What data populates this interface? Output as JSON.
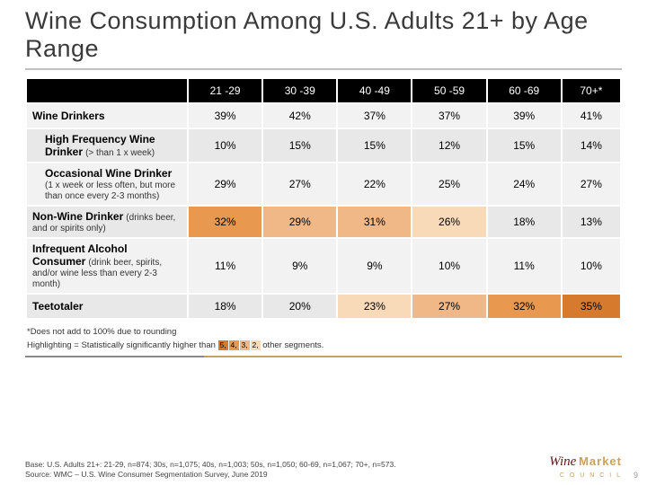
{
  "title": "Wine Consumption Among U.S. Adults 21+ by Age Range",
  "columns": [
    "21 -29",
    "30 -39",
    "40 -49",
    "50 -59",
    "60 -69",
    "70+*"
  ],
  "rows": [
    {
      "label_main": "Wine Drinkers",
      "label_sub": "",
      "indent": false,
      "cells": [
        {
          "v": "39%",
          "hl": 0
        },
        {
          "v": "42%",
          "hl": 0
        },
        {
          "v": "37%",
          "hl": 0
        },
        {
          "v": "37%",
          "hl": 0
        },
        {
          "v": "39%",
          "hl": 0
        },
        {
          "v": "41%",
          "hl": 0
        }
      ]
    },
    {
      "label_main": "High Frequency Wine Drinker",
      "label_sub": "(> than 1 x week)",
      "indent": true,
      "cells": [
        {
          "v": "10%",
          "hl": 0
        },
        {
          "v": "15%",
          "hl": 0
        },
        {
          "v": "15%",
          "hl": 0
        },
        {
          "v": "12%",
          "hl": 0
        },
        {
          "v": "15%",
          "hl": 0
        },
        {
          "v": "14%",
          "hl": 0
        }
      ]
    },
    {
      "label_main": "Occasional Wine Drinker",
      "label_sub": "(1 x week or less often, but more than once every 2-3 months)",
      "indent": true,
      "cells": [
        {
          "v": "29%",
          "hl": 0
        },
        {
          "v": "27%",
          "hl": 0
        },
        {
          "v": "22%",
          "hl": 0
        },
        {
          "v": "25%",
          "hl": 0
        },
        {
          "v": "24%",
          "hl": 0
        },
        {
          "v": "27%",
          "hl": 0
        }
      ]
    },
    {
      "label_main": "Non-Wine Drinker",
      "label_sub": "(drinks beer, and or spirits only)",
      "indent": false,
      "cells": [
        {
          "v": "32%",
          "hl": 4
        },
        {
          "v": "29%",
          "hl": 3
        },
        {
          "v": "31%",
          "hl": 3
        },
        {
          "v": "26%",
          "hl": 2
        },
        {
          "v": "18%",
          "hl": 0
        },
        {
          "v": "13%",
          "hl": 0
        }
      ]
    },
    {
      "label_main": "Infrequent Alcohol Consumer",
      "label_sub": "(drink beer, spirits, and/or wine less than every 2-3 month)",
      "indent": false,
      "cells": [
        {
          "v": "11%",
          "hl": 0
        },
        {
          "v": "9%",
          "hl": 0
        },
        {
          "v": "9%",
          "hl": 0
        },
        {
          "v": "10%",
          "hl": 0
        },
        {
          "v": "11%",
          "hl": 0
        },
        {
          "v": "10%",
          "hl": 0
        }
      ]
    },
    {
      "label_main": "Teetotaler",
      "label_sub": "",
      "indent": false,
      "cells": [
        {
          "v": "18%",
          "hl": 0
        },
        {
          "v": "20%",
          "hl": 0
        },
        {
          "v": "23%",
          "hl": 2
        },
        {
          "v": "27%",
          "hl": 3
        },
        {
          "v": "32%",
          "hl": 4
        },
        {
          "v": "35%",
          "hl": 5
        }
      ]
    }
  ],
  "highlight_colors": {
    "5": "#d67a2e",
    "4": "#e8994f",
    "3": "#f0b886",
    "2": "#f8d9b8"
  },
  "footnote_rounding": "*Does not add to 100% due to rounding",
  "footnote_legend_pre": "Highlighting = Statistically significantly higher than",
  "footnote_legend_post": "other segments.",
  "legend_nums": [
    "5",
    "4",
    "3",
    "2"
  ],
  "base_text": "Base: U.S. Adults 21+: 21-29, n=874; 30s, n=1,075; 40s, n=1,003; 50s, n=1,050; 60-69, n=1,067; 70+, n=573.",
  "source_text": "Source: WMC – U.S. Wine Consumer Segmentation Survey, June 2019",
  "logo": {
    "wine": "Wine",
    "market": "Market",
    "council": "C O U N C I L"
  },
  "page_number": "9"
}
